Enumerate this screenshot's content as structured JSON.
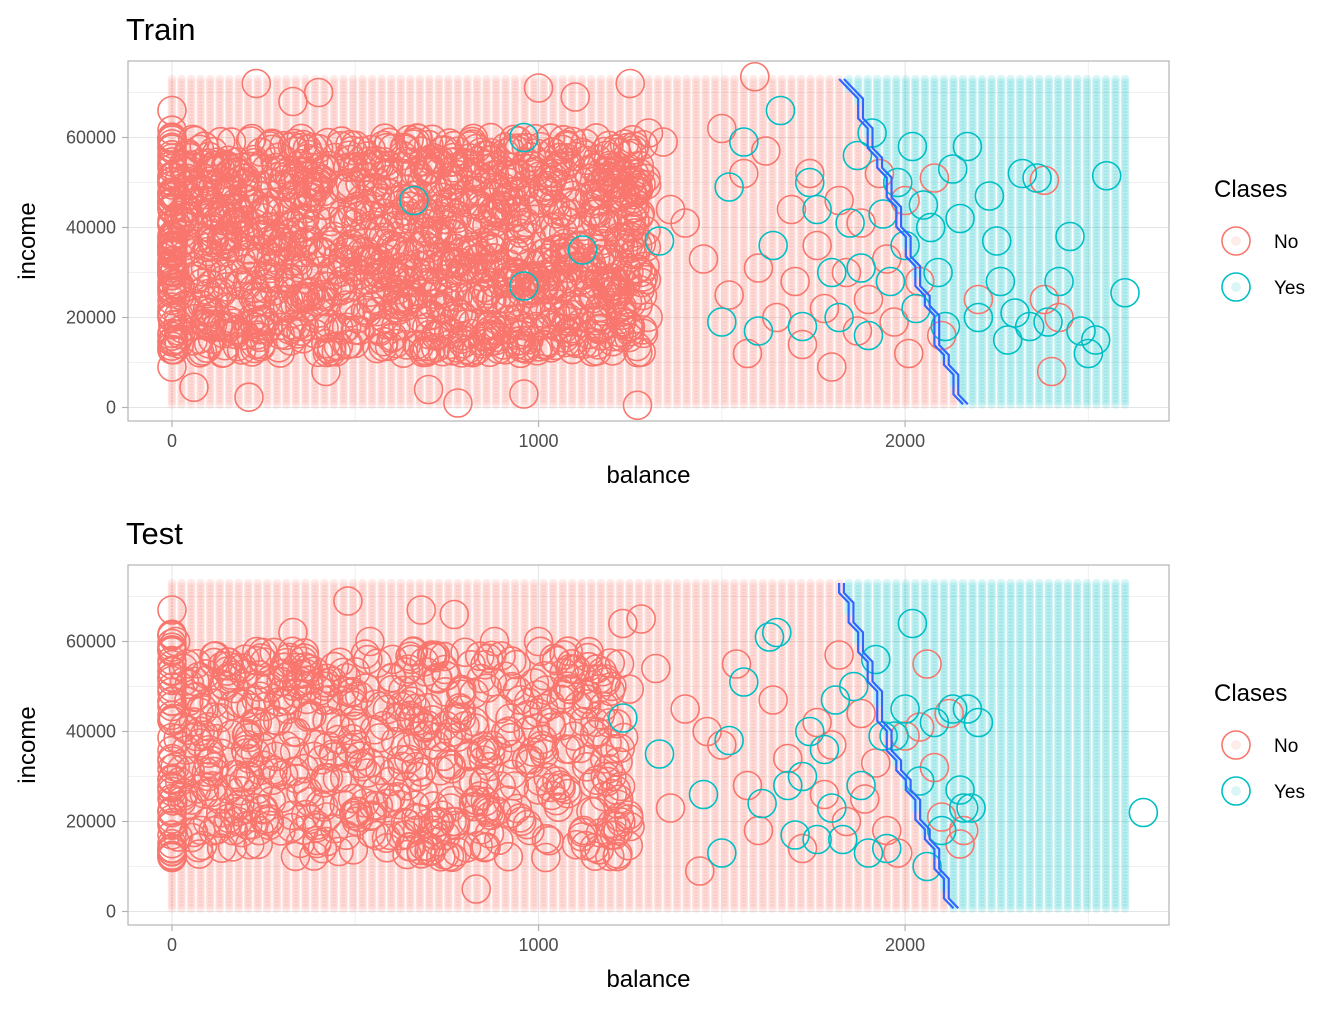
{
  "colors": {
    "no": "#F8766D",
    "yes": "#00BFC4",
    "boundary": "#3366FF",
    "grid": "#E5E5E5",
    "panel_border": "#B3B3B3",
    "tick_text": "#4D4D4D"
  },
  "chart_data": [
    {
      "type": "scatter",
      "title": "Train",
      "xlabel": "balance",
      "ylabel": "income",
      "xlim": [
        -120,
        2720
      ],
      "ylim": [
        -3000,
        77000
      ],
      "xticks": [
        0,
        1000,
        2000
      ],
      "xtick_labels": [
        "0",
        "1000",
        "2000"
      ],
      "yticks": [
        0,
        20000,
        40000,
        60000
      ],
      "ytick_labels": [
        "0",
        "20000",
        "40000",
        "60000"
      ],
      "grid": true,
      "legend": {
        "title": "Clases",
        "position": "right",
        "entries": [
          "No",
          "Yes"
        ]
      },
      "background_grid": {
        "x_range": [
          0,
          2600
        ],
        "x_step": 26,
        "y_range": [
          700,
          73000
        ],
        "y_step": 730,
        "boundary_balance_at_income": [
          [
            73000,
            1820
          ],
          [
            68000,
            1870
          ],
          [
            60000,
            1900
          ],
          [
            52000,
            1935
          ],
          [
            44000,
            1975
          ],
          [
            36000,
            2000
          ],
          [
            28000,
            2030
          ],
          [
            20000,
            2070
          ],
          [
            12000,
            2100
          ],
          [
            700,
            2150
          ]
        ]
      },
      "series": [
        {
          "name": "No",
          "values": [
            [
              0,
              9000
            ],
            [
              0,
              66000
            ],
            [
              10,
              52000
            ],
            [
              5,
              15000
            ],
            [
              60,
              4500
            ],
            [
              100,
              21000
            ],
            [
              210,
              2300
            ],
            [
              230,
              72000
            ],
            [
              330,
              68000
            ],
            [
              400,
              70000
            ],
            [
              420,
              8000
            ],
            [
              660,
              46000
            ],
            [
              700,
              4000
            ],
            [
              780,
              1000
            ],
            [
              960,
              3000
            ],
            [
              1000,
              71000
            ],
            [
              1100,
              69000
            ],
            [
              1250,
              72000
            ],
            [
              1270,
              500
            ],
            [
              1300,
              61000
            ],
            [
              1340,
              59000
            ],
            [
              1360,
              44000
            ],
            [
              1400,
              41000
            ],
            [
              1450,
              33000
            ],
            [
              1500,
              62000
            ],
            [
              1520,
              25000
            ],
            [
              1560,
              52000
            ],
            [
              1570,
              12000
            ],
            [
              1590,
              73500
            ],
            [
              1600,
              31000
            ],
            [
              1620,
              57000
            ],
            [
              1650,
              20000
            ],
            [
              1690,
              44000
            ],
            [
              1700,
              28000
            ],
            [
              1720,
              14000
            ],
            [
              1740,
              52000
            ],
            [
              1760,
              36000
            ],
            [
              1780,
              22000
            ],
            [
              1800,
              9000
            ],
            [
              1820,
              46000
            ],
            [
              1840,
              30000
            ],
            [
              1870,
              17000
            ],
            [
              1880,
              41000
            ],
            [
              1900,
              24000
            ],
            [
              1930,
              52000
            ],
            [
              1950,
              33000
            ],
            [
              1970,
              19000
            ],
            [
              2000,
              46000
            ],
            [
              2010,
              12000
            ],
            [
              2040,
              28000
            ],
            [
              2080,
              51000
            ],
            [
              2100,
              16000
            ],
            [
              2200,
              24000
            ],
            [
              2380,
              24000
            ],
            [
              2380,
              50500
            ],
            [
              2400,
              8000
            ],
            [
              2420,
              20000
            ]
          ]
        },
        {
          "name": "Yes",
          "values": [
            [
              660,
              46000
            ],
            [
              960,
              27000
            ],
            [
              960,
              60000
            ],
            [
              1120,
              35000
            ],
            [
              1330,
              37000
            ],
            [
              1500,
              19000
            ],
            [
              1520,
              49000
            ],
            [
              1560,
              59000
            ],
            [
              1600,
              17000
            ],
            [
              1640,
              36000
            ],
            [
              1660,
              66000
            ],
            [
              1720,
              18000
            ],
            [
              1740,
              50000
            ],
            [
              1760,
              44000
            ],
            [
              1800,
              30000
            ],
            [
              1820,
              20000
            ],
            [
              1850,
              41000
            ],
            [
              1870,
              56000
            ],
            [
              1880,
              31000
            ],
            [
              1900,
              16000
            ],
            [
              1910,
              61000
            ],
            [
              1940,
              43000
            ],
            [
              1960,
              28000
            ],
            [
              1980,
              50000
            ],
            [
              2000,
              36000
            ],
            [
              2020,
              58000
            ],
            [
              2030,
              22000
            ],
            [
              2050,
              45000
            ],
            [
              2070,
              40000
            ],
            [
              2090,
              30000
            ],
            [
              2110,
              18000
            ],
            [
              2130,
              53000
            ],
            [
              2150,
              42000
            ],
            [
              2170,
              58000
            ],
            [
              2200,
              20000
            ],
            [
              2230,
              47000
            ],
            [
              2250,
              37000
            ],
            [
              2260,
              28000
            ],
            [
              2280,
              15000
            ],
            [
              2300,
              21000
            ],
            [
              2320,
              52000
            ],
            [
              2340,
              18000
            ],
            [
              2360,
              51000
            ],
            [
              2390,
              19000
            ],
            [
              2420,
              28000
            ],
            [
              2450,
              38000
            ],
            [
              2480,
              17000
            ],
            [
              2500,
              12000
            ],
            [
              2520,
              15000
            ],
            [
              2550,
              51500
            ],
            [
              2600,
              25500
            ]
          ]
        }
      ],
      "dense_no_region": {
        "x_range": [
          0,
          1300
        ],
        "y_range": [
          12000,
          60000
        ]
      }
    },
    {
      "type": "scatter",
      "title": "Test",
      "xlabel": "balance",
      "ylabel": "income",
      "xlim": [
        -120,
        2720
      ],
      "ylim": [
        -3000,
        77000
      ],
      "xticks": [
        0,
        1000,
        2000
      ],
      "xtick_labels": [
        "0",
        "1000",
        "2000"
      ],
      "yticks": [
        0,
        20000,
        40000,
        60000
      ],
      "ytick_labels": [
        "0",
        "20000",
        "40000",
        "60000"
      ],
      "grid": true,
      "legend": {
        "title": "Clases",
        "position": "right",
        "entries": [
          "No",
          "Yes"
        ]
      },
      "background_grid": {
        "x_range": [
          0,
          2600
        ],
        "x_step": 26,
        "y_range": [
          700,
          73000
        ],
        "y_step": 730,
        "boundary_balance_at_income": [
          [
            73000,
            1820
          ],
          [
            68000,
            1840
          ],
          [
            60000,
            1870
          ],
          [
            52000,
            1900
          ],
          [
            44000,
            1930
          ],
          [
            36000,
            1960
          ],
          [
            28000,
            2000
          ],
          [
            20000,
            2040
          ],
          [
            12000,
            2080
          ],
          [
            700,
            2120
          ]
        ]
      },
      "series": [
        {
          "name": "No",
          "values": [
            [
              0,
              67000
            ],
            [
              0,
              12000
            ],
            [
              10,
              60000
            ],
            [
              40,
              55000
            ],
            [
              100,
              30000
            ],
            [
              180,
              20000
            ],
            [
              230,
              47000
            ],
            [
              330,
              62000
            ],
            [
              440,
              35000
            ],
            [
              480,
              69000
            ],
            [
              540,
              60000
            ],
            [
              600,
              52000
            ],
            [
              680,
              67000
            ],
            [
              760,
              23000
            ],
            [
              770,
              66000
            ],
            [
              830,
              5000
            ],
            [
              880,
              60000
            ],
            [
              950,
              47000
            ],
            [
              1000,
              60000
            ],
            [
              1020,
              12000
            ],
            [
              1070,
              57000
            ],
            [
              1200,
              30000
            ],
            [
              1230,
              64000
            ],
            [
              1280,
              65000
            ],
            [
              1320,
              54000
            ],
            [
              1360,
              23000
            ],
            [
              1400,
              45000
            ],
            [
              1440,
              9000
            ],
            [
              1460,
              40000
            ],
            [
              1500,
              37000
            ],
            [
              1540,
              55000
            ],
            [
              1570,
              28000
            ],
            [
              1600,
              18000
            ],
            [
              1640,
              47000
            ],
            [
              1680,
              34000
            ],
            [
              1720,
              14000
            ],
            [
              1760,
              42000
            ],
            [
              1780,
              26000
            ],
            [
              1800,
              37000
            ],
            [
              1820,
              57000
            ],
            [
              1840,
              20000
            ],
            [
              1880,
              44000
            ],
            [
              1890,
              25000
            ],
            [
              1920,
              33000
            ],
            [
              1950,
              18000
            ],
            [
              1980,
              13000
            ],
            [
              2000,
              39000
            ],
            [
              2040,
              41000
            ],
            [
              2060,
              55000
            ],
            [
              2080,
              32000
            ],
            [
              2100,
              21000
            ],
            [
              2120,
              44000
            ],
            [
              2150,
              15000
            ],
            [
              2160,
              18000
            ]
          ]
        },
        {
          "name": "Yes",
          "values": [
            [
              1230,
              43000
            ],
            [
              1330,
              35000
            ],
            [
              1450,
              26000
            ],
            [
              1500,
              13000
            ],
            [
              1520,
              38000
            ],
            [
              1560,
              51000
            ],
            [
              1610,
              24000
            ],
            [
              1630,
              61000
            ],
            [
              1650,
              62000
            ],
            [
              1680,
              28000
            ],
            [
              1700,
              17000
            ],
            [
              1720,
              30000
            ],
            [
              1740,
              40000
            ],
            [
              1760,
              16000
            ],
            [
              1780,
              36000
            ],
            [
              1800,
              23000
            ],
            [
              1810,
              47000
            ],
            [
              1830,
              16000
            ],
            [
              1860,
              50000
            ],
            [
              1880,
              28000
            ],
            [
              1900,
              13000
            ],
            [
              1920,
              56000
            ],
            [
              1940,
              39000
            ],
            [
              1950,
              14000
            ],
            [
              1970,
              39000
            ],
            [
              2000,
              45000
            ],
            [
              2020,
              64000
            ],
            [
              2040,
              29000
            ],
            [
              2060,
              10000
            ],
            [
              2080,
              42000
            ],
            [
              2100,
              18000
            ],
            [
              2130,
              45000
            ],
            [
              2150,
              27000
            ],
            [
              2160,
              23000
            ],
            [
              2170,
              45000
            ],
            [
              2180,
              23000
            ],
            [
              2200,
              42000
            ],
            [
              2650,
              22000
            ]
          ]
        }
      ],
      "dense_no_region": {
        "x_range": [
          0,
          1250
        ],
        "y_range": [
          12000,
          58000
        ]
      }
    }
  ]
}
